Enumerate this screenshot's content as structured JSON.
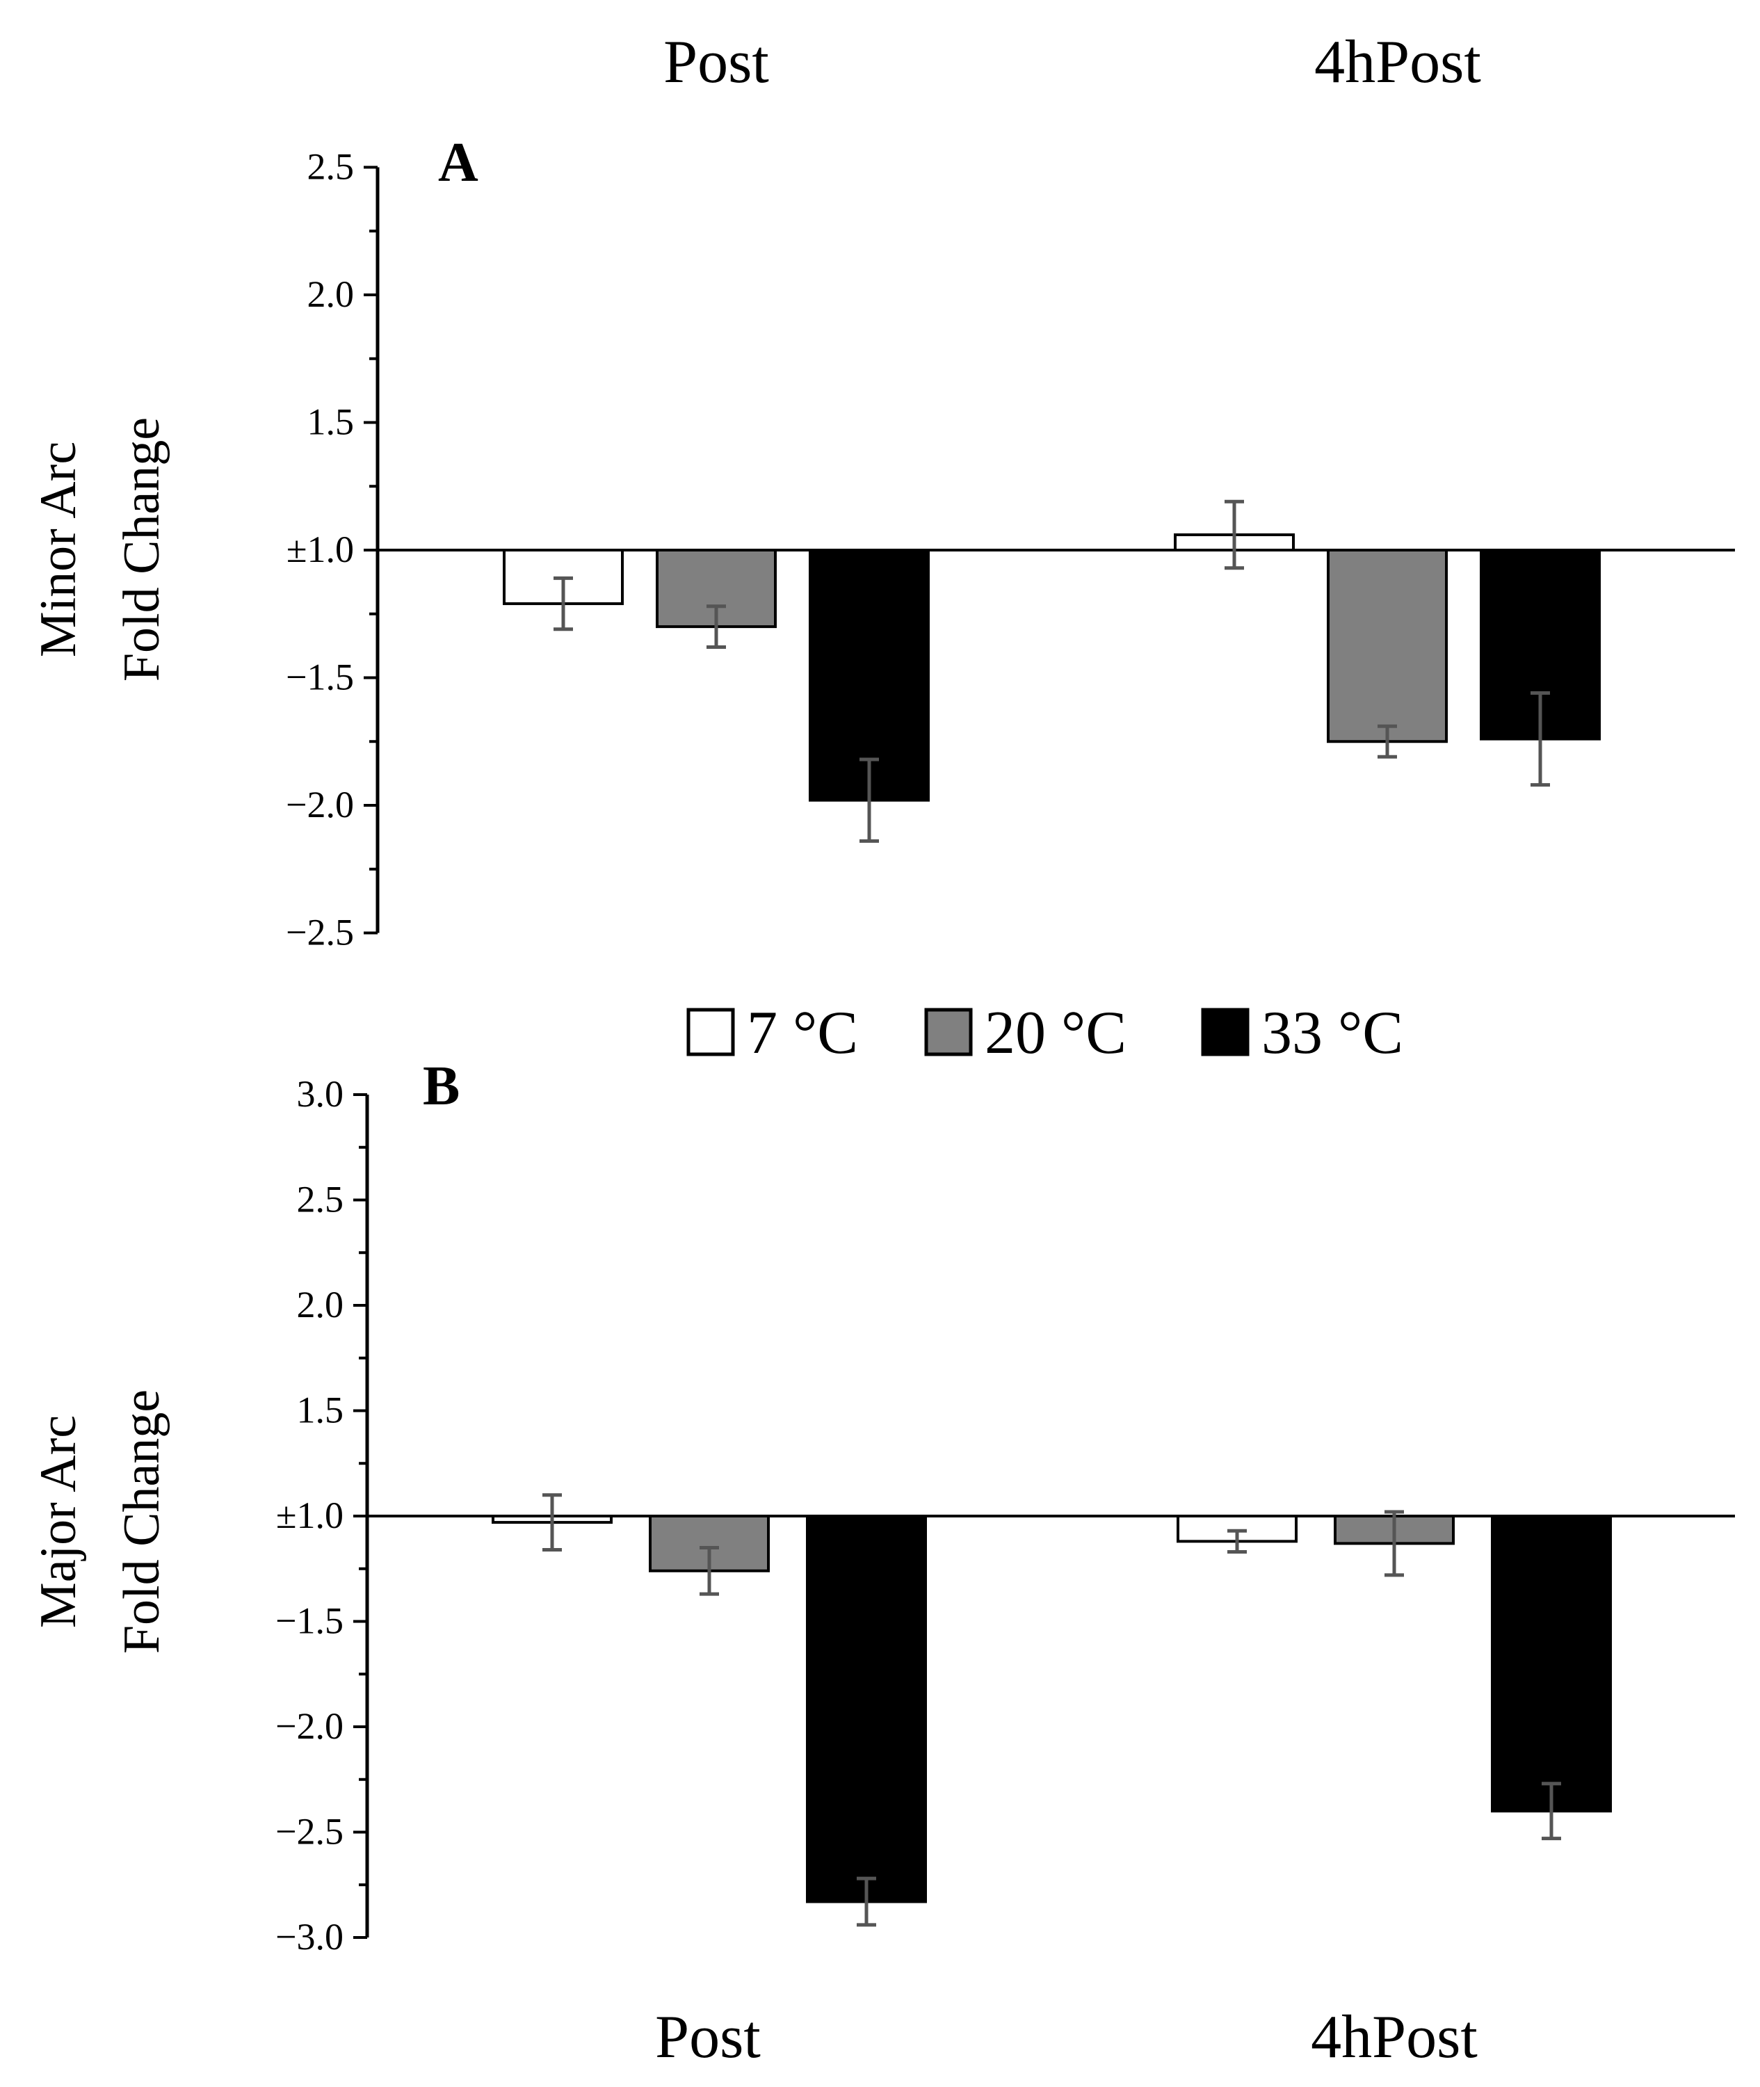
{
  "figure": {
    "top_categories": [
      "Post",
      "4hPost"
    ],
    "bottom_categories": [
      "Post",
      "4hPost"
    ],
    "legend": [
      {
        "label": "7 °C",
        "color": "#ffffff"
      },
      {
        "label": "20 °C",
        "color": "#808080"
      },
      {
        "label": "33 °C",
        "color": "#000000"
      }
    ]
  },
  "chart_data": [
    {
      "type": "bar",
      "panel": "A",
      "ylabel": [
        "Minor Arc",
        "Fold Change"
      ],
      "categories": [
        "Post",
        "4hPost"
      ],
      "ylim": [
        -2.5,
        2.5
      ],
      "yticks": [
        "2.5",
        "2.0",
        "1.5",
        "±1.0",
        "−1.5",
        "−2.0",
        "−2.5"
      ],
      "baseline": "±1.0",
      "series": [
        {
          "name": "7 °C",
          "color": "#ffffff",
          "values": [
            -1.21,
            1.06
          ],
          "errors": [
            0.1,
            0.13
          ]
        },
        {
          "name": "20 °C",
          "color": "#808080",
          "values": [
            -1.3,
            -1.75
          ],
          "errors": [
            0.08,
            0.06
          ]
        },
        {
          "name": "33 °C",
          "color": "#000000",
          "values": [
            -1.98,
            -1.74
          ],
          "errors": [
            0.16,
            0.18
          ]
        }
      ]
    },
    {
      "type": "bar",
      "panel": "B",
      "ylabel": [
        "Major Arc",
        "Fold Change"
      ],
      "categories": [
        "Post",
        "4hPost"
      ],
      "ylim": [
        -3.0,
        3.0
      ],
      "yticks": [
        "3.0",
        "2.5",
        "2.0",
        "1.5",
        "±1.0",
        "−1.5",
        "−2.0",
        "−2.5",
        "−3.0"
      ],
      "baseline": "±1.0",
      "series": [
        {
          "name": "7 °C",
          "color": "#ffffff",
          "values": [
            -1.03,
            -1.12
          ],
          "errors": [
            0.13,
            0.05
          ]
        },
        {
          "name": "20 °C",
          "color": "#808080",
          "values": [
            -1.26,
            -1.13
          ],
          "errors": [
            0.11,
            0.15
          ]
        },
        {
          "name": "33 °C",
          "color": "#000000",
          "values": [
            -2.83,
            -2.4
          ],
          "errors": [
            0.11,
            0.13
          ]
        }
      ]
    }
  ]
}
